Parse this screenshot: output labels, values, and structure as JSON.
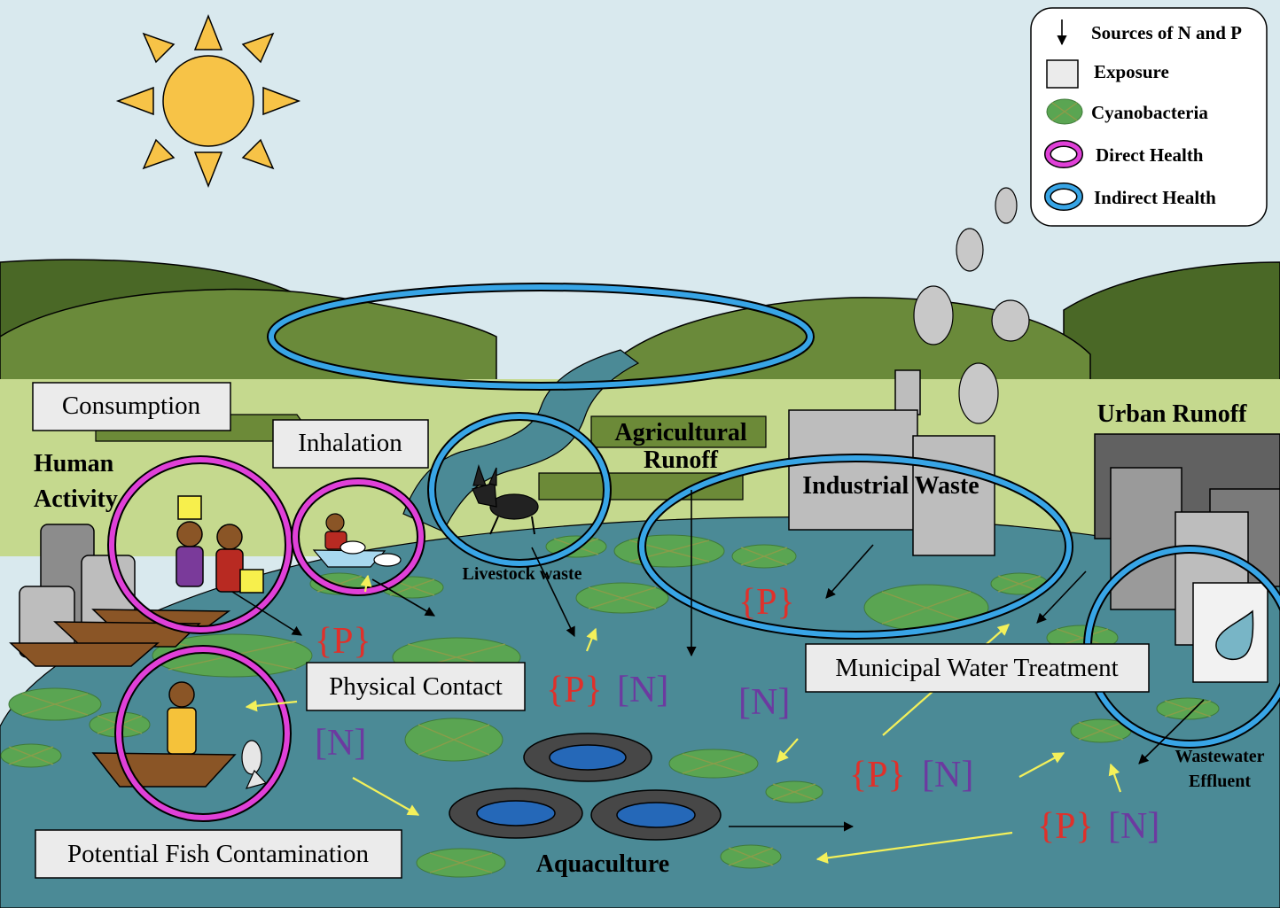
{
  "legend": {
    "sources": "Sources of N and P",
    "exposure": "Exposure",
    "cyanobacteria": "Cyanobacteria",
    "direct_health": "Direct Health",
    "indirect_health": "Indirect Health"
  },
  "labels": {
    "consumption": "Consumption",
    "inhalation": "Inhalation",
    "physical_contact": "Physical Contact",
    "potential_fish": "Potential Fish Contamination",
    "municipal": "Municipal Water Treatment",
    "human_line1": "Human",
    "human_line2": "Activity",
    "agri_line1": "Agricultural",
    "agri_line2": "Runoff",
    "industrial": "Industrial Waste",
    "urban": "Urban Runoff",
    "livestock": "Livestock waste",
    "aquaculture": "Aquaculture",
    "wastewater_line1": "Wastewater",
    "wastewater_line2": "Effluent"
  },
  "nutrients": {
    "p": "{P}",
    "n": "[N]"
  },
  "colors": {
    "sky": "#d9e9ee",
    "sun": "#f7c347",
    "hill_dark": "#4a6826",
    "hill_mid": "#6a8a3a",
    "meadow": "#c5d98e",
    "water": "#4b8a96",
    "cyanobacteria": "#5aa552",
    "direct_health": "#e040d8",
    "indirect_health": "#38a5e6",
    "phosphorus": "#e0302a",
    "nitrogen": "#6c3aa0",
    "flow_arrow": "#f3f05a"
  }
}
